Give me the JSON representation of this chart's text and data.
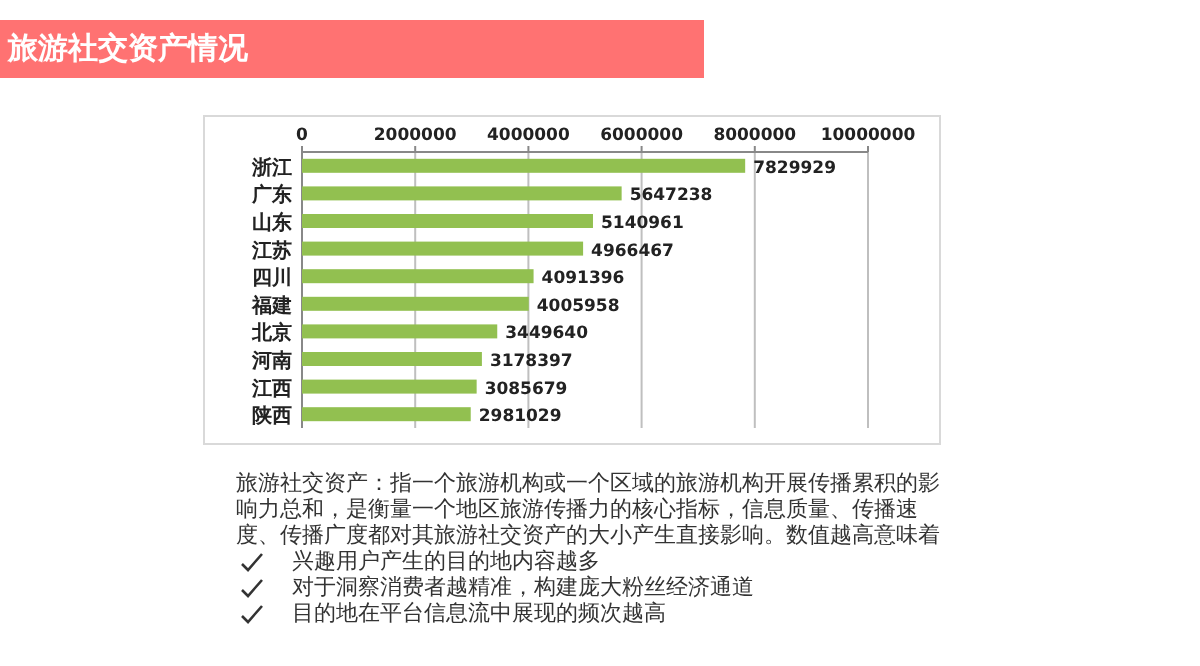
{
  "chart_data": {
    "type": "bar",
    "orientation": "horizontal",
    "title": "旅游社交资产情况",
    "categories": [
      "浙江",
      "广东",
      "山东",
      "江苏",
      "四川",
      "福建",
      "北京",
      "河南",
      "江西",
      "陕西"
    ],
    "values": [
      7829929,
      5647238,
      5140961,
      4966467,
      4091396,
      4005958,
      3449640,
      3178397,
      3085679,
      2981029
    ],
    "color": "#92c050",
    "xlim": [
      0,
      10000000
    ],
    "xticks": [
      0,
      2000000,
      4000000,
      6000000,
      8000000,
      10000000
    ],
    "grid": "x",
    "data_labels": true,
    "annotations": [
      "旅游社交资产：指一个旅游机构或一个区域的旅游机构开展传播累积的影响力总和，是衡量一个地区旅游传播力的核心指标，信息质量、传播速度、传播广度都对其旅游社交资产的大小产生直接影响。数值越高意味着",
      "兴趣用户产生的目的地内容越多",
      "对于洞察消费者越精准，构建庞大粉丝经济通道",
      "目的地在平台信息流中展现的频次越高"
    ]
  }
}
